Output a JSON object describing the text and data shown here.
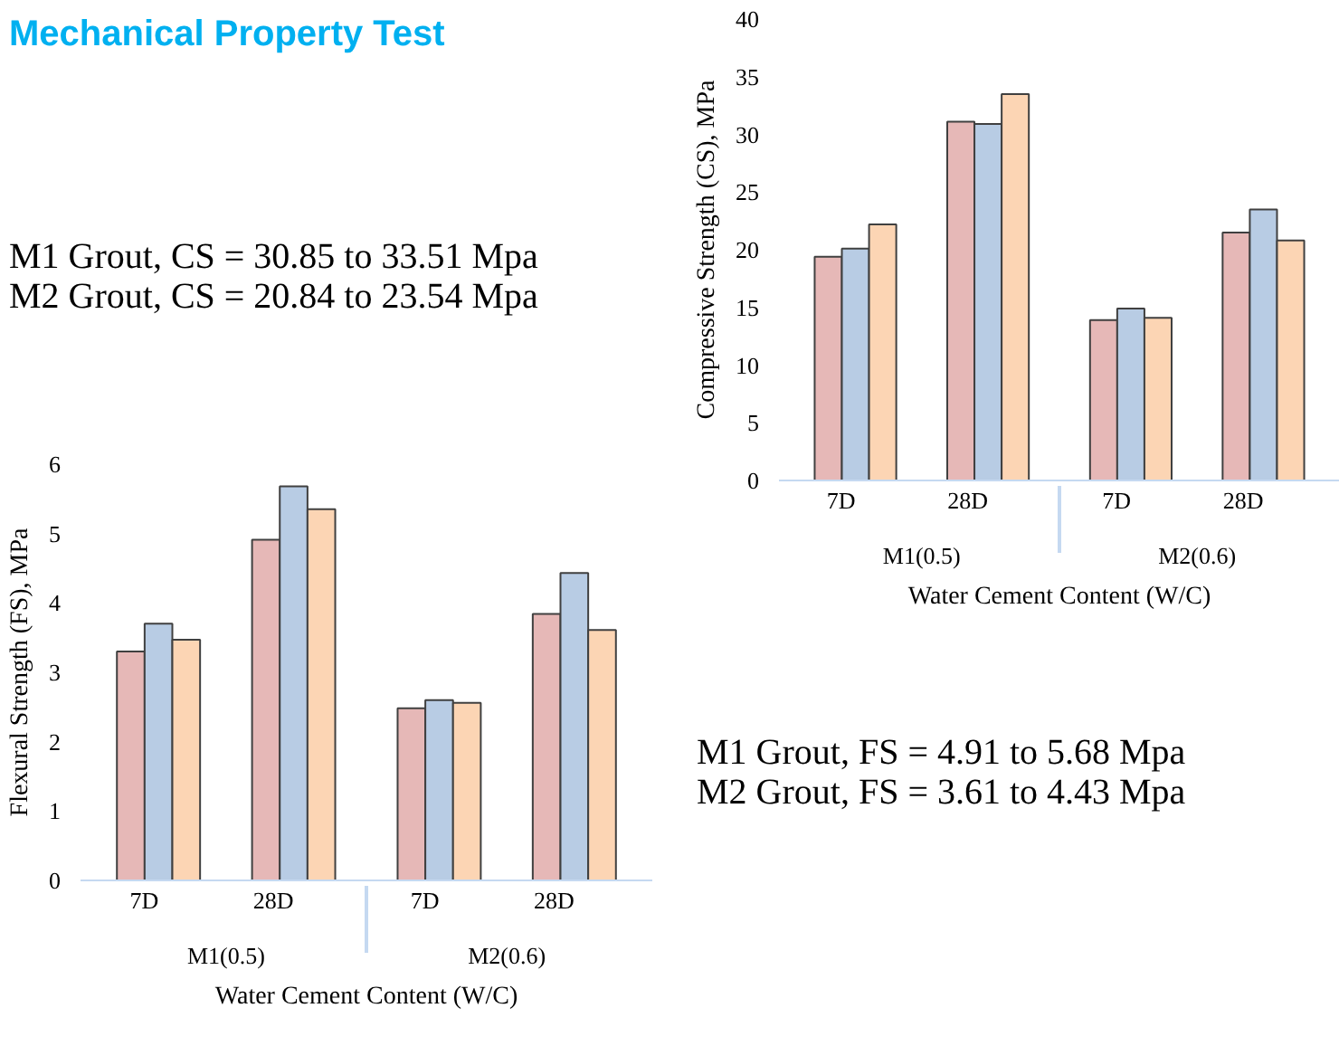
{
  "chart_data": [
    {
      "type": "other",
      "title": "Mechanical Property Test",
      "annotations": [
        "M1 Grout, CS = 30.85 to 33.51 Mpa",
        "M2 Grout, CS = 20.84 to 23.54 Mpa"
      ]
    },
    {
      "type": "bar",
      "categories": [
        "7D",
        "28D",
        "7D",
        "28D"
      ],
      "xlabel": "Water Cement Content (W/C)",
      "ylabel": "Compressive Strength (CS), MPa",
      "ylim": [
        0,
        40
      ],
      "yticks": [
        0,
        5,
        10,
        15,
        20,
        25,
        30,
        35,
        40
      ],
      "series": [
        {
          "color": "#e6b8b7",
          "values": [
            19.4,
            31.1,
            13.9,
            21.5
          ]
        },
        {
          "color": "#b8cce4",
          "values": [
            20.1,
            30.9,
            14.9,
            23.5
          ]
        },
        {
          "color": "#fcd5b4",
          "values": [
            22.2,
            33.5,
            14.1,
            20.8
          ]
        }
      ],
      "annotations": [
        "M1(0.5)",
        "M2(0.6)"
      ]
    },
    {
      "type": "bar",
      "categories": [
        "7D",
        "28D",
        "7D",
        "28D"
      ],
      "xlabel": "Water Cement Content (W/C)",
      "ylabel": "Flexural Strength (FS), MPa",
      "ylim": [
        0,
        6
      ],
      "yticks": [
        0,
        1,
        2,
        3,
        4,
        5,
        6
      ],
      "series": [
        {
          "color": "#e6b8b7",
          "values": [
            3.3,
            4.91,
            2.48,
            3.84
          ]
        },
        {
          "color": "#b8cce4",
          "values": [
            3.7,
            5.68,
            2.6,
            4.43
          ]
        },
        {
          "color": "#fcd5b4",
          "values": [
            3.47,
            5.35,
            2.56,
            3.61
          ]
        }
      ],
      "annotations": [
        "M1(0.5)",
        "M2(0.6)",
        "M1 Grout, FS = 4.91 to 5.68 Mpa",
        "M2 Grout, FS = 3.61 to 4.43 Mpa"
      ]
    }
  ]
}
